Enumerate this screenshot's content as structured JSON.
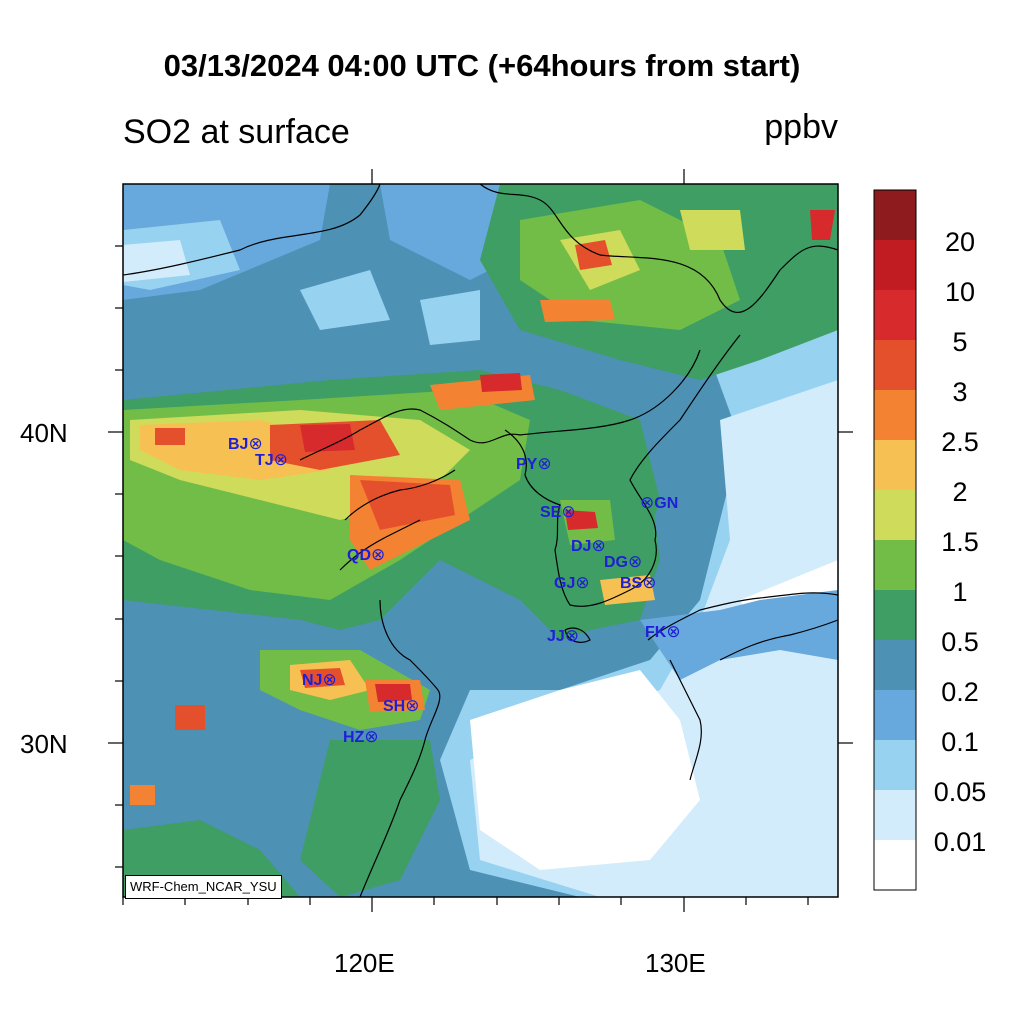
{
  "title": "03/13/2024 04:00 UTC (+64hours from start)",
  "subtitle_left": "SO2 at surface",
  "units": "ppbv",
  "credit": "WRF-Chem_NCAR_YSU",
  "axes": {
    "lon_ticks": [
      "120E",
      "130E"
    ],
    "lat_ticks": [
      "40N",
      "30N"
    ],
    "lon_range": [
      112,
      135
    ],
    "lat_range": [
      25.5,
      48.5
    ]
  },
  "colorbar": {
    "levels": [
      "20",
      "10",
      "5",
      "3",
      "2.5",
      "2",
      "1.5",
      "1",
      "0.5",
      "0.2",
      "0.1",
      "0.05",
      "0.01"
    ],
    "colors": [
      "#8e1b1e",
      "#c01c22",
      "#d62a2c",
      "#e5502c",
      "#f38332",
      "#f6c152",
      "#cfdb5b",
      "#72bd48",
      "#3e9e63",
      "#4d91b5",
      "#67a8dd",
      "#98d2f1",
      "#d2ecfb",
      "#ffffff"
    ]
  },
  "cities": [
    {
      "code": "BJ",
      "marker": "⊗"
    },
    {
      "code": "TJ",
      "marker": "⊗"
    },
    {
      "code": "QD",
      "marker": "⊗"
    },
    {
      "code": "NJ",
      "marker": "⊗"
    },
    {
      "code": "SH",
      "marker": "⊗"
    },
    {
      "code": "HZ",
      "marker": "⊗"
    },
    {
      "code": "PY",
      "marker": "⊗"
    },
    {
      "code": "SE",
      "marker": "⊗"
    },
    {
      "code": "GN",
      "marker": "⊗"
    },
    {
      "code": "DJ",
      "marker": "⊗"
    },
    {
      "code": "DG",
      "marker": "⊗"
    },
    {
      "code": "GJ",
      "marker": "⊗"
    },
    {
      "code": "BS",
      "marker": "⊗"
    },
    {
      "code": "JJ",
      "marker": "⊗"
    },
    {
      "code": "FK",
      "marker": "⊗"
    }
  ]
}
